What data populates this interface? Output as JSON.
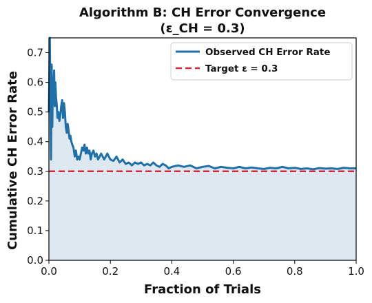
{
  "chart_data": {
    "type": "line",
    "title": "Algorithm B: CH Error Convergence",
    "subtitle": "(ε_CH = 0.3)",
    "xlabel": "Fraction of Trials",
    "ylabel": "Cumulative CH Error Rate",
    "xlim": [
      0.0,
      1.0
    ],
    "ylim": [
      0.0,
      0.75
    ],
    "xticks": [
      "0.0",
      "0.2",
      "0.4",
      "0.6",
      "0.8",
      "1.0"
    ],
    "yticks": [
      "0.0",
      "0.1",
      "0.2",
      "0.3",
      "0.4",
      "0.5",
      "0.6",
      "0.7"
    ],
    "grid": false,
    "legend_position": "top-right",
    "series": [
      {
        "name": "Observed CH Error Rate",
        "color": "#1f6fa8",
        "style": "solid",
        "fill_below": true,
        "fill_color": "#dde8f1",
        "x": [
          0.0,
          0.003,
          0.005,
          0.007,
          0.009,
          0.011,
          0.013,
          0.015,
          0.017,
          0.019,
          0.021,
          0.023,
          0.025,
          0.028,
          0.031,
          0.034,
          0.037,
          0.04,
          0.043,
          0.046,
          0.049,
          0.052,
          0.055,
          0.058,
          0.061,
          0.064,
          0.067,
          0.07,
          0.073,
          0.076,
          0.08,
          0.084,
          0.088,
          0.092,
          0.096,
          0.1,
          0.104,
          0.108,
          0.112,
          0.116,
          0.12,
          0.124,
          0.128,
          0.132,
          0.136,
          0.14,
          0.145,
          0.15,
          0.155,
          0.16,
          0.165,
          0.17,
          0.175,
          0.18,
          0.185,
          0.19,
          0.195,
          0.2,
          0.21,
          0.22,
          0.23,
          0.24,
          0.25,
          0.26,
          0.27,
          0.28,
          0.29,
          0.3,
          0.31,
          0.32,
          0.33,
          0.34,
          0.35,
          0.36,
          0.37,
          0.38,
          0.39,
          0.4,
          0.42,
          0.44,
          0.46,
          0.48,
          0.5,
          0.52,
          0.54,
          0.56,
          0.58,
          0.6,
          0.62,
          0.64,
          0.66,
          0.68,
          0.7,
          0.72,
          0.74,
          0.76,
          0.78,
          0.8,
          0.82,
          0.84,
          0.86,
          0.88,
          0.9,
          0.92,
          0.94,
          0.96,
          0.98,
          1.0
        ],
        "values": [
          0.5,
          0.75,
          0.55,
          0.34,
          0.66,
          0.45,
          0.6,
          0.58,
          0.64,
          0.52,
          0.6,
          0.55,
          0.53,
          0.48,
          0.5,
          0.47,
          0.49,
          0.52,
          0.54,
          0.48,
          0.53,
          0.5,
          0.45,
          0.43,
          0.46,
          0.44,
          0.41,
          0.42,
          0.4,
          0.39,
          0.38,
          0.35,
          0.37,
          0.34,
          0.35,
          0.34,
          0.36,
          0.38,
          0.37,
          0.39,
          0.36,
          0.38,
          0.36,
          0.37,
          0.34,
          0.36,
          0.37,
          0.35,
          0.36,
          0.34,
          0.35,
          0.36,
          0.35,
          0.34,
          0.35,
          0.36,
          0.35,
          0.34,
          0.335,
          0.35,
          0.33,
          0.34,
          0.325,
          0.33,
          0.32,
          0.33,
          0.325,
          0.33,
          0.32,
          0.325,
          0.32,
          0.33,
          0.32,
          0.315,
          0.325,
          0.32,
          0.31,
          0.315,
          0.32,
          0.315,
          0.32,
          0.31,
          0.315,
          0.318,
          0.31,
          0.315,
          0.312,
          0.31,
          0.315,
          0.31,
          0.313,
          0.31,
          0.308,
          0.312,
          0.31,
          0.315,
          0.31,
          0.312,
          0.308,
          0.31,
          0.307,
          0.311,
          0.309,
          0.31,
          0.308,
          0.312,
          0.31,
          0.31
        ]
      },
      {
        "name": "Target ε = 0.3",
        "color": "#d6263a",
        "style": "dashed",
        "x": [
          0.0,
          1.0
        ],
        "values": [
          0.3,
          0.3
        ]
      }
    ]
  }
}
